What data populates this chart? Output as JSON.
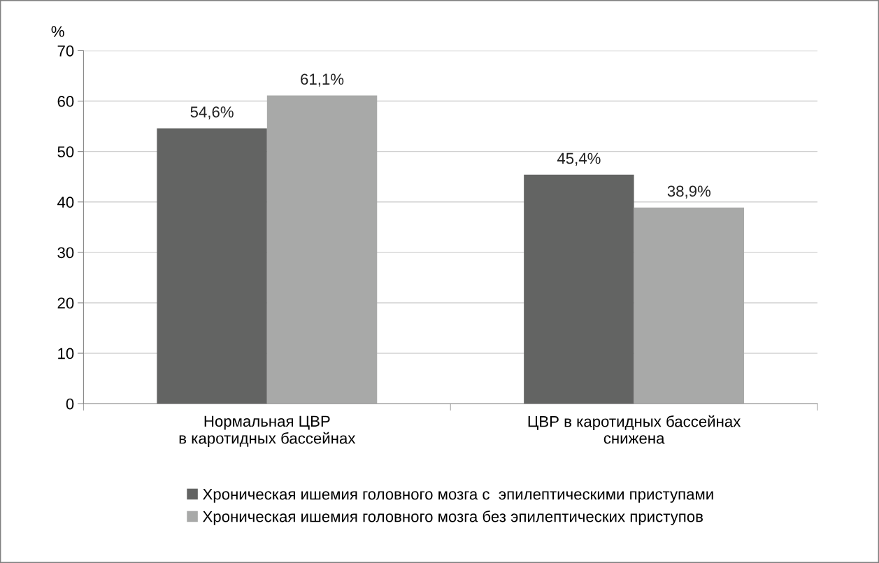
{
  "chart_data": {
    "type": "bar",
    "ylabel": "%",
    "categories": [
      "Нормальная ЦВР\nв каротидных бассейнах",
      "ЦВР в каротидных бассейнах\nснижена"
    ],
    "series": [
      {
        "name": "Хроническая ишемия головного мозга с  эпилептическими приступами",
        "color": "#636463",
        "values": [
          54.6,
          45.4
        ],
        "value_labels": [
          "54,6%",
          "45,4%"
        ]
      },
      {
        "name": "Хроническая ишемия головного мозга без эпилептических приступов",
        "color": "#a8a9a8",
        "values": [
          61.1,
          38.9
        ],
        "value_labels": [
          "61,1%",
          "38,9%"
        ]
      }
    ],
    "ylim": [
      0,
      70
    ],
    "yticks": [
      0,
      10,
      20,
      30,
      40,
      50,
      60,
      70
    ],
    "grid": "y",
    "legend": "bottom"
  }
}
